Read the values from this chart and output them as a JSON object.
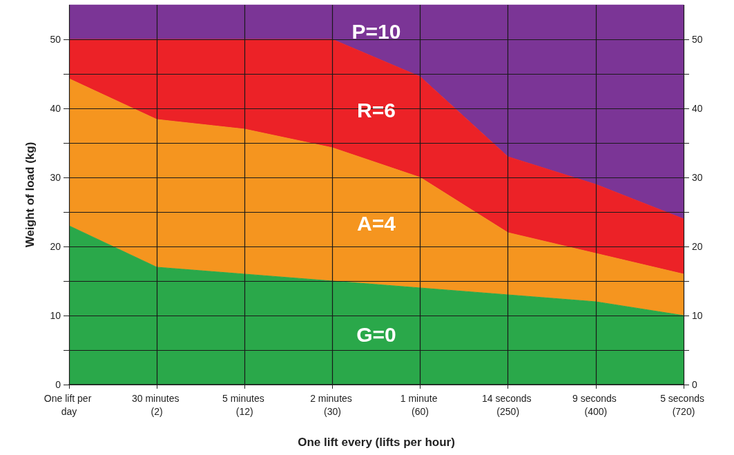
{
  "chart_data": {
    "type": "area",
    "xlabel": "One lift every (lifts per hour)",
    "ylabel": "Weight of load (kg)",
    "categories": [
      "One lift per day",
      "30 minutes (2)",
      "5 minutes (12)",
      "2 minutes (30)",
      "1 minute (60)",
      "14 seconds (250)",
      "9 seconds (400)",
      "5 seconds (720)"
    ],
    "stacked": true,
    "series": [
      {
        "name": "G=0",
        "color": "#2aa84a",
        "values": [
          23,
          17,
          16,
          15,
          14,
          13,
          12,
          10
        ]
      },
      {
        "name": "A=4",
        "color": "#f5951f",
        "values": [
          21.3,
          21.4,
          21,
          19.3,
          16,
          9,
          7,
          6
        ]
      },
      {
        "name": "R=6",
        "color": "#ec2227",
        "values": [
          5.7,
          11.6,
          13,
          15.7,
          14.6,
          11,
          10,
          8
        ]
      },
      {
        "name": "P=10",
        "color": "#7b3596",
        "values": [
          5,
          5,
          5,
          5,
          10.4,
          22,
          26,
          31
        ]
      }
    ],
    "ylim": [
      0,
      55
    ],
    "yticks": [
      0,
      {
        "value": 5,
        "label": null
      },
      10,
      {
        "value": 15,
        "label": null
      },
      20,
      {
        "value": 25,
        "label": null
      },
      30,
      {
        "value": 35,
        "label": null
      },
      40,
      {
        "value": 45,
        "label": null
      },
      50
    ],
    "y2lim": [
      0,
      55
    ],
    "y2ticks": [
      0,
      {
        "value": 5,
        "label": null
      },
      10,
      {
        "value": 15,
        "label": null
      },
      20,
      {
        "value": 25,
        "label": null
      },
      30,
      {
        "value": 35,
        "label": null
      },
      40,
      {
        "value": 45,
        "label": null
      },
      50
    ],
    "grid": true,
    "legend": false
  }
}
